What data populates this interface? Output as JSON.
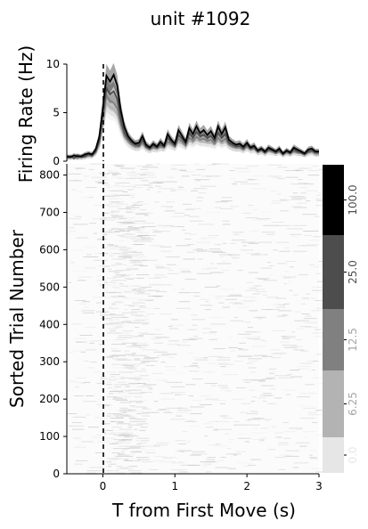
{
  "chart_data": [
    {
      "type": "line",
      "title": "unit #1092",
      "ylabel": "Firing Rate (Hz)",
      "xlim": [
        -0.5,
        3.0
      ],
      "ylim": [
        0,
        10
      ],
      "y_ticks": [
        0,
        5,
        10
      ],
      "grid": false,
      "vline_x": 0,
      "x": [
        -0.5,
        -0.45,
        -0.4,
        -0.35,
        -0.3,
        -0.25,
        -0.2,
        -0.15,
        -0.1,
        -0.05,
        0.0,
        0.05,
        0.1,
        0.15,
        0.2,
        0.25,
        0.3,
        0.35,
        0.4,
        0.45,
        0.5,
        0.55,
        0.6,
        0.65,
        0.7,
        0.75,
        0.8,
        0.85,
        0.9,
        0.95,
        1.0,
        1.05,
        1.1,
        1.15,
        1.2,
        1.25,
        1.3,
        1.35,
        1.4,
        1.45,
        1.5,
        1.55,
        1.6,
        1.65,
        1.7,
        1.75,
        1.8,
        1.85,
        1.9,
        1.95,
        2.0,
        2.05,
        2.1,
        2.15,
        2.2,
        2.25,
        2.3,
        2.35,
        2.4,
        2.45,
        2.5,
        2.55,
        2.6,
        2.65,
        2.7,
        2.75,
        2.8,
        2.85,
        2.9,
        2.95,
        3.0
      ],
      "series": [
        {
          "color": "#000000",
          "values": [
            0.5,
            0.4,
            0.6,
            0.5,
            0.5,
            0.7,
            0.8,
            0.7,
            1.2,
            2.5,
            5.5,
            8.8,
            8.2,
            8.9,
            7.8,
            5.2,
            3.5,
            2.6,
            2.1,
            1.8,
            1.9,
            2.6,
            1.7,
            1.4,
            1.8,
            1.5,
            2.0,
            1.6,
            2.8,
            2.2,
            1.8,
            3.2,
            2.6,
            2.0,
            3.4,
            2.8,
            3.6,
            2.9,
            3.2,
            2.7,
            3.1,
            2.4,
            3.6,
            2.8,
            3.5,
            2.2,
            1.9,
            1.7,
            1.8,
            1.5,
            1.9,
            1.4,
            1.6,
            1.1,
            1.3,
            1.0,
            1.4,
            1.2,
            1.0,
            1.3,
            0.8,
            1.1,
            0.9,
            1.4,
            1.2,
            1.0,
            0.8,
            1.2,
            1.3,
            1.0,
            1.0
          ]
        },
        {
          "color": "#4d4d4d",
          "values": [
            0.4,
            0.5,
            0.3,
            0.6,
            0.4,
            0.5,
            0.7,
            0.6,
            1.0,
            2.1,
            4.8,
            7.5,
            6.9,
            7.2,
            6.4,
            4.3,
            2.9,
            2.3,
            1.9,
            1.7,
            1.6,
            2.2,
            1.5,
            1.3,
            1.6,
            1.4,
            1.7,
            1.5,
            2.4,
            2.0,
            1.6,
            2.7,
            2.3,
            1.8,
            2.9,
            2.4,
            3.0,
            2.6,
            2.7,
            2.4,
            2.6,
            2.1,
            2.9,
            2.4,
            2.8,
            1.9,
            1.7,
            1.5,
            1.6,
            1.3,
            1.7,
            1.3,
            1.4,
            1.0,
            1.2,
            0.9,
            1.2,
            1.1,
            0.9,
            1.1,
            0.7,
            1.0,
            0.8,
            1.2,
            1.0,
            0.9,
            0.7,
            1.0,
            1.1,
            0.9,
            0.9
          ]
        },
        {
          "color": "#808080",
          "values": [
            0.3,
            0.4,
            0.4,
            0.3,
            0.5,
            0.4,
            0.6,
            0.5,
            0.9,
            1.9,
            4.2,
            6.8,
            6.2,
            6.0,
            5.4,
            3.8,
            2.6,
            2.1,
            1.7,
            1.5,
            1.5,
            1.9,
            1.4,
            1.2,
            1.4,
            1.3,
            1.5,
            1.4,
            2.0,
            1.8,
            1.5,
            2.3,
            2.0,
            1.6,
            2.4,
            2.1,
            2.5,
            2.2,
            2.3,
            2.1,
            2.2,
            1.8,
            2.4,
            2.0,
            2.3,
            1.7,
            1.5,
            1.4,
            1.4,
            1.2,
            1.5,
            1.2,
            1.3,
            0.9,
            1.1,
            0.8,
            1.1,
            1.0,
            0.8,
            1.0,
            0.7,
            0.9,
            0.8,
            1.0,
            0.9,
            0.8,
            0.7,
            0.9,
            1.0,
            0.8,
            0.8
          ]
        },
        {
          "color": "#b3b3b3",
          "values": [
            0.3,
            0.3,
            0.4,
            0.4,
            0.3,
            0.4,
            0.5,
            0.5,
            0.8,
            1.6,
            3.6,
            6.0,
            5.6,
            5.4,
            4.8,
            3.4,
            2.4,
            1.9,
            1.6,
            1.4,
            1.4,
            1.7,
            1.3,
            1.1,
            1.3,
            1.2,
            1.4,
            1.3,
            1.8,
            1.6,
            1.4,
            2.0,
            1.8,
            1.5,
            2.1,
            1.9,
            2.2,
            2.0,
            2.0,
            1.9,
            1.9,
            1.7,
            2.1,
            1.8,
            2.0,
            1.6,
            1.4,
            1.3,
            1.3,
            1.1,
            1.4,
            1.1,
            1.2,
            0.9,
            1.0,
            0.8,
            1.0,
            0.9,
            0.8,
            0.9,
            0.6,
            0.8,
            0.7,
            0.9,
            0.8,
            0.8,
            0.6,
            0.8,
            0.9,
            0.7,
            0.7
          ]
        },
        {
          "color": "#e6e6e6",
          "values": [
            0.2,
            0.3,
            0.3,
            0.3,
            0.3,
            0.3,
            0.4,
            0.4,
            0.7,
            1.4,
            3.2,
            5.4,
            5.0,
            4.9,
            4.3,
            3.0,
            2.2,
            1.7,
            1.5,
            1.3,
            1.3,
            1.6,
            1.2,
            1.0,
            1.2,
            1.1,
            1.3,
            1.2,
            1.6,
            1.5,
            1.3,
            1.8,
            1.6,
            1.4,
            1.9,
            1.7,
            2.0,
            1.8,
            1.8,
            1.7,
            1.7,
            1.5,
            1.9,
            1.6,
            1.8,
            1.5,
            1.3,
            1.2,
            1.2,
            1.0,
            1.3,
            1.0,
            1.1,
            0.8,
            0.9,
            0.7,
            0.9,
            0.8,
            0.7,
            0.8,
            0.6,
            0.7,
            0.7,
            0.8,
            0.7,
            0.7,
            0.6,
            0.7,
            0.8,
            0.7,
            0.7
          ]
        }
      ]
    },
    {
      "type": "heatmap",
      "xlabel": "T from First Move (s)",
      "ylabel": "Sorted Trial Number",
      "xlim": [
        -0.5,
        3.0
      ],
      "ylim": [
        0,
        830
      ],
      "x_ticks": [
        0,
        1,
        2,
        3
      ],
      "y_ticks": [
        0,
        100,
        200,
        300,
        400,
        500,
        600,
        700,
        800
      ],
      "vline_x": 0,
      "n_trials": 830,
      "grid": false
    },
    {
      "type": "colorbar",
      "labels": [
        "0.0",
        "6.25",
        "12.5",
        "25.0",
        "100.0"
      ],
      "colors": [
        "#e6e6e6",
        "#b3b3b3",
        "#808080",
        "#4d4d4d",
        "#000000"
      ]
    }
  ]
}
